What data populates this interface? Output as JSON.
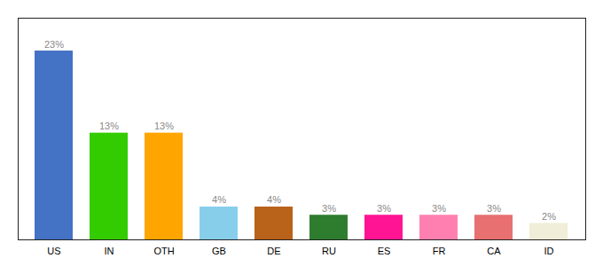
{
  "chart_data": {
    "type": "bar",
    "categories": [
      "US",
      "IN",
      "OTH",
      "GB",
      "DE",
      "RU",
      "ES",
      "FR",
      "CA",
      "ID"
    ],
    "values": [
      23,
      13,
      13,
      4,
      4,
      3,
      3,
      3,
      3,
      2
    ],
    "value_labels": [
      "23%",
      "13%",
      "13%",
      "4%",
      "4%",
      "3%",
      "3%",
      "3%",
      "3%",
      "2%"
    ],
    "colors": [
      "#4472C4",
      "#33CC00",
      "#FFA500",
      "#87CEEB",
      "#B8621A",
      "#2E7D2E",
      "#FF1493",
      "#FF80B0",
      "#E87070",
      "#F0EDD8"
    ],
    "ylim": [
      0,
      27
    ],
    "data_labels": true,
    "tick_labels": "x",
    "grid": false
  }
}
